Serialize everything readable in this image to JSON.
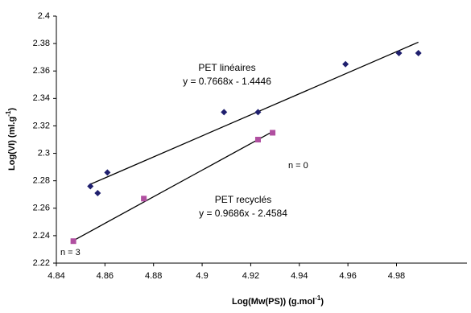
{
  "chart_data": {
    "type": "scatter",
    "xlabel": {
      "text": "Log(Mw(PS)) (g.mol",
      "sup": "-1",
      "end": ")"
    },
    "ylabel": {
      "text": "Log(VI) (ml.g",
      "sup": "-1",
      "end": ")"
    },
    "xlim": [
      4.84,
      5.009
    ],
    "ylim": [
      2.22,
      2.4
    ],
    "xticks": [
      4.84,
      4.86,
      4.88,
      4.9,
      4.92,
      4.94,
      4.96,
      4.98
    ],
    "yticks": [
      2.22,
      2.24,
      2.26,
      2.28,
      2.3,
      2.32,
      2.34,
      2.36,
      2.38,
      2.4
    ],
    "series": [
      {
        "name": "PET linéaires",
        "color": "#1f1f6e",
        "marker": "diamond",
        "x": [
          4.854,
          4.857,
          4.861,
          4.909,
          4.923,
          4.959,
          4.981,
          4.989
        ],
        "values": [
          2.276,
          2.271,
          2.286,
          2.33,
          2.33,
          2.365,
          2.373,
          2.373
        ],
        "trendline": {
          "label": "y = 0.7668x - 1.4446",
          "slope": 0.7668,
          "intercept": -1.4446
        }
      },
      {
        "name": "PET recyclés",
        "color": "#b04fa0",
        "marker": "square",
        "x": [
          4.847,
          4.876,
          4.923,
          4.929
        ],
        "values": [
          2.236,
          2.267,
          2.31,
          2.315
        ],
        "trendline": {
          "label": "y = 0.9686x - 2.4584",
          "slope": 0.9686,
          "intercept": -2.4584
        }
      }
    ],
    "annotations": [
      "n = 3",
      "n = 0"
    ]
  }
}
